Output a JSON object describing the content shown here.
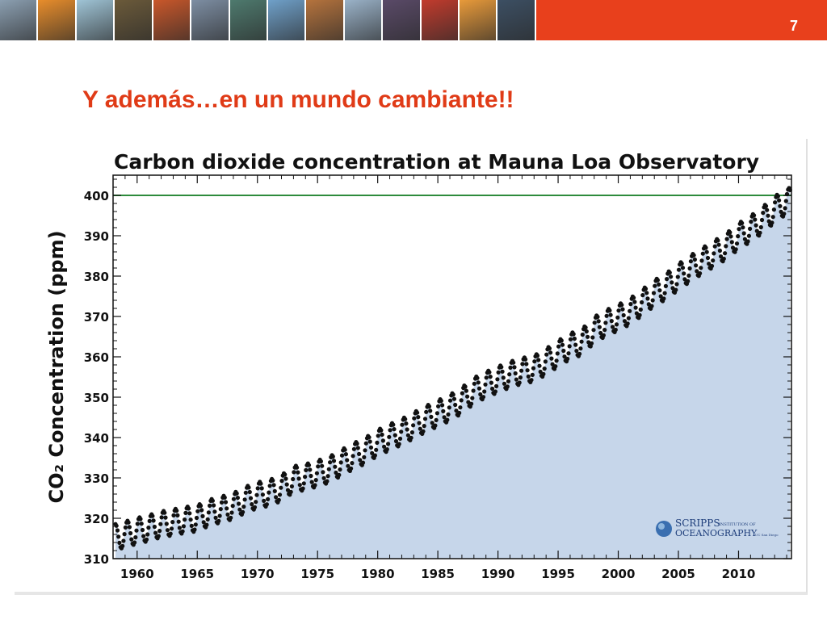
{
  "header": {
    "slide_number": "7",
    "photo_tiles": [
      "#8b9fb1",
      "#e88d2b",
      "#9fc4d6",
      "#6b5a3a",
      "#c9572a",
      "#7d8ea3",
      "#4e7a6e",
      "#6fa0c9",
      "#b5733d",
      "#9ab2c8",
      "#5a4a68",
      "#c23b2d",
      "#e89a3a",
      "#3c4f63"
    ]
  },
  "title": "Y además…en un mundo cambiante!!",
  "colors": {
    "accent": "#e8401c",
    "title": "#e03b17",
    "area_fill": "#c6d6ea",
    "reference_line": "#2e8b3c",
    "points": "#111111"
  },
  "chart_data": {
    "type": "scatter",
    "title": "Carbon dioxide concentration at Mauna Loa Observatory",
    "ylabel": "CO₂ Concentration (ppm)",
    "xlabel": "",
    "xlim": [
      1958.0,
      2014.4
    ],
    "ylim": [
      310,
      405
    ],
    "x_ticks": [
      1960,
      1965,
      1970,
      1975,
      1980,
      1985,
      1990,
      1995,
      2000,
      2005,
      2010
    ],
    "y_ticks": [
      310,
      320,
      330,
      340,
      350,
      360,
      370,
      380,
      390,
      400
    ],
    "reference_line": 400,
    "area_under_series": true,
    "grid": false,
    "series": [
      {
        "values_description": "monthly mean CO2, ppm",
        "annual_mean": [
          [
            1958,
            315.2
          ],
          [
            1959,
            316.0
          ],
          [
            1960,
            316.9
          ],
          [
            1961,
            317.6
          ],
          [
            1962,
            318.5
          ],
          [
            1963,
            319.0
          ],
          [
            1964,
            319.6
          ],
          [
            1965,
            320.0
          ],
          [
            1966,
            321.4
          ],
          [
            1967,
            322.2
          ],
          [
            1968,
            323.0
          ],
          [
            1969,
            324.6
          ],
          [
            1970,
            325.7
          ],
          [
            1971,
            326.3
          ],
          [
            1972,
            327.5
          ],
          [
            1973,
            329.7
          ],
          [
            1974,
            330.2
          ],
          [
            1975,
            331.1
          ],
          [
            1976,
            332.1
          ],
          [
            1977,
            333.8
          ],
          [
            1978,
            335.4
          ],
          [
            1979,
            336.8
          ],
          [
            1980,
            338.7
          ],
          [
            1981,
            340.1
          ],
          [
            1982,
            341.4
          ],
          [
            1983,
            343.0
          ],
          [
            1984,
            344.6
          ],
          [
            1985,
            346.0
          ],
          [
            1986,
            347.4
          ],
          [
            1987,
            349.2
          ],
          [
            1988,
            351.6
          ],
          [
            1989,
            353.1
          ],
          [
            1990,
            354.4
          ],
          [
            1991,
            355.6
          ],
          [
            1992,
            356.5
          ],
          [
            1993,
            357.1
          ],
          [
            1994,
            358.8
          ],
          [
            1995,
            360.8
          ],
          [
            1996,
            362.6
          ],
          [
            1997,
            363.7
          ],
          [
            1998,
            366.7
          ],
          [
            1999,
            368.4
          ],
          [
            2000,
            369.7
          ],
          [
            2001,
            371.3
          ],
          [
            2002,
            373.5
          ],
          [
            2003,
            375.8
          ],
          [
            2004,
            377.5
          ],
          [
            2005,
            379.8
          ],
          [
            2006,
            381.9
          ],
          [
            2007,
            383.8
          ],
          [
            2008,
            385.6
          ],
          [
            2009,
            387.4
          ],
          [
            2010,
            389.9
          ],
          [
            2011,
            391.7
          ],
          [
            2012,
            393.9
          ],
          [
            2013,
            396.5
          ],
          [
            2014,
            398.6
          ]
        ],
        "seasonal_amplitude": 3.2
      }
    ]
  },
  "logo": {
    "line1": "SCRIPPS",
    "line1_small": "INSTITUTION OF",
    "line2": "OCEANOGRAPHY",
    "line2_small": "UC San Diego"
  }
}
